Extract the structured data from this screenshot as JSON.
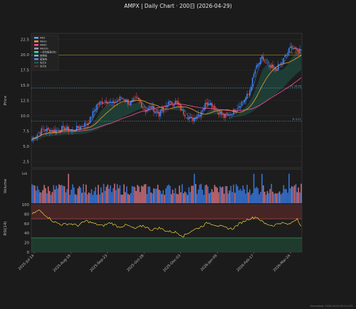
{
  "title": "AMPX  |  Daily Chart · 200日  (2026-04-29)",
  "footer": "Generated: 2026-04-29 09:14 UTC",
  "colors": {
    "background": "#1b1b1b",
    "up": "#3b82f6",
    "down": "#ef4444",
    "ma5": "#5fa8ff",
    "ma20": "#f0a030",
    "ma60": "#ff4f9e",
    "ichimoku_a": "#4ed2c8",
    "ichimoku_b": "#7a7cff",
    "cloud_up": "#1f5a4a",
    "cloud_down": "#6a2e2e",
    "rsi": "#f3d23c"
  },
  "chart_data": [
    {
      "type": "candlestick",
      "ylabel": "Price",
      "ylim": [
        1.5,
        23.5
      ],
      "yticks": [
        2.5,
        5.0,
        7.5,
        10.0,
        12.5,
        15.0,
        17.5,
        20.0,
        22.5
      ],
      "xticks": [
        "2025-Jul-14",
        "2025-Aug-18",
        "2025-Sep-23",
        "2025-Oct-28",
        "2025-Dec-03",
        "2026-Jan-09",
        "2026-Feb-17",
        "2026-Mar-24"
      ],
      "grid": true,
      "legend": {
        "position": "top-left",
        "entries": [
          "MA5",
          "MA20",
          "MA60",
          "MA200",
          "一目均衡表(赤)",
          "转换线",
          "基准线",
          "先行A",
          "先行B"
        ]
      },
      "hlines": [
        {
          "y": 19.98,
          "label": "R: 19.98",
          "color": "#c9a227"
        },
        {
          "y": 14.55,
          "label": "R: 14.55",
          "color": "#5fb3c9"
        },
        {
          "y": 9.11,
          "label": "R: 9.11",
          "color": "#5fb3c9"
        }
      ],
      "anchors": [
        [
          0,
          6.2
        ],
        [
          8,
          7.8
        ],
        [
          16,
          7.5
        ],
        [
          24,
          8.0
        ],
        [
          30,
          7.5
        ],
        [
          36,
          8.3
        ],
        [
          42,
          9.0
        ],
        [
          48,
          11.8
        ],
        [
          54,
          12.5
        ],
        [
          60,
          12.0
        ],
        [
          66,
          13.0
        ],
        [
          72,
          12.0
        ],
        [
          78,
          12.8
        ],
        [
          84,
          10.8
        ],
        [
          88,
          11.5
        ],
        [
          94,
          10.2
        ],
        [
          100,
          12.0
        ],
        [
          106,
          12.3
        ],
        [
          112,
          10.5
        ],
        [
          118,
          9.3
        ],
        [
          124,
          10.5
        ],
        [
          130,
          12.5
        ],
        [
          136,
          11.0
        ],
        [
          142,
          9.8
        ],
        [
          148,
          10.5
        ],
        [
          154,
          12.0
        ],
        [
          160,
          13.5
        ],
        [
          165,
          17.5
        ],
        [
          170,
          19.5
        ],
        [
          175,
          18.0
        ],
        [
          180,
          17.5
        ],
        [
          184,
          18.5
        ],
        [
          188,
          20.0
        ],
        [
          192,
          21.5
        ],
        [
          196,
          20.5
        ],
        [
          199,
          21.0
        ]
      ],
      "n_bars": 200
    },
    {
      "type": "bar",
      "ylabel": "Volume",
      "ylabel_exponent": "1e6",
      "n_bars": 200
    },
    {
      "type": "line",
      "ylabel": "RSI(14)",
      "ylim": [
        0,
        100
      ],
      "yticks": [
        0,
        20,
        40,
        60,
        80,
        100
      ],
      "zones": [
        {
          "from": 70,
          "to": 100,
          "color": "#5a2a2a"
        },
        {
          "from": 0,
          "to": 30,
          "color": "#1f4a34"
        }
      ],
      "anchors": [
        [
          0,
          80
        ],
        [
          5,
          88
        ],
        [
          10,
          78
        ],
        [
          16,
          64
        ],
        [
          22,
          58
        ],
        [
          28,
          60
        ],
        [
          34,
          56
        ],
        [
          40,
          66
        ],
        [
          46,
          60
        ],
        [
          52,
          55
        ],
        [
          58,
          62
        ],
        [
          64,
          53
        ],
        [
          70,
          57
        ],
        [
          76,
          49
        ],
        [
          82,
          56
        ],
        [
          88,
          47
        ],
        [
          94,
          51
        ],
        [
          100,
          44
        ],
        [
          106,
          42
        ],
        [
          112,
          34
        ],
        [
          118,
          45
        ],
        [
          124,
          52
        ],
        [
          130,
          62
        ],
        [
          136,
          57
        ],
        [
          142,
          52
        ],
        [
          148,
          49
        ],
        [
          154,
          61
        ],
        [
          160,
          70
        ],
        [
          166,
          74
        ],
        [
          172,
          60
        ],
        [
          178,
          56
        ],
        [
          184,
          62
        ],
        [
          190,
          58
        ],
        [
          196,
          71
        ],
        [
          199,
          55
        ]
      ]
    }
  ]
}
